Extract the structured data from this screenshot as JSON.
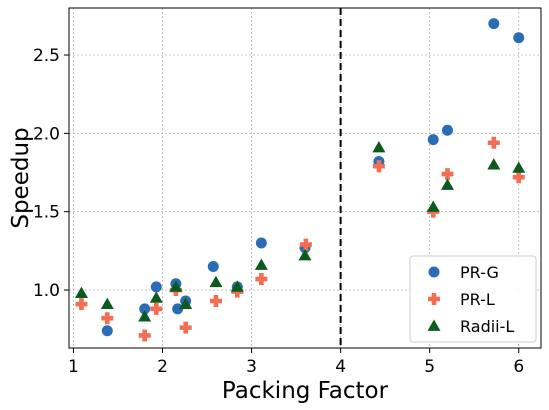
{
  "chart_data": {
    "type": "scatter",
    "title": "",
    "xlabel": "Packing Factor",
    "ylabel": "Speedup",
    "xlim": [
      0.95,
      6.25
    ],
    "ylim": [
      0.63,
      2.8
    ],
    "xticks": [
      1,
      2,
      3,
      4,
      5,
      6
    ],
    "yticks": [
      1.0,
      1.5,
      2.0,
      2.5
    ],
    "xtick_labels": [
      "1",
      "2",
      "3",
      "4",
      "5",
      "6"
    ],
    "ytick_labels": [
      "1.0",
      "1.5",
      "2.0",
      "2.5"
    ],
    "grid": true,
    "vertical_reference_line": 4.0,
    "legend_position": "lower-right",
    "series": [
      {
        "name": "PR-G",
        "marker": "circle",
        "color": "#2a6db5",
        "points": [
          [
            1.38,
            0.74
          ],
          [
            1.8,
            0.88
          ],
          [
            1.93,
            1.02
          ],
          [
            2.15,
            1.04
          ],
          [
            2.17,
            0.88
          ],
          [
            2.26,
            0.93
          ],
          [
            2.57,
            1.15
          ],
          [
            2.84,
            1.02
          ],
          [
            3.11,
            1.3
          ],
          [
            3.6,
            1.27
          ],
          [
            4.43,
            1.82
          ],
          [
            5.04,
            1.96
          ],
          [
            5.2,
            2.02
          ],
          [
            5.72,
            2.7
          ],
          [
            6.0,
            2.61
          ]
        ]
      },
      {
        "name": "PR-L",
        "marker": "plus",
        "color": "#f36e52",
        "points": [
          [
            1.09,
            0.91
          ],
          [
            1.38,
            0.82
          ],
          [
            1.8,
            0.71
          ],
          [
            1.93,
            0.88
          ],
          [
            2.15,
            1.0
          ],
          [
            2.26,
            0.76
          ],
          [
            2.6,
            0.93
          ],
          [
            2.84,
            0.99
          ],
          [
            3.11,
            1.07
          ],
          [
            3.61,
            1.29
          ],
          [
            4.43,
            1.79
          ],
          [
            5.04,
            1.5
          ],
          [
            5.2,
            1.74
          ],
          [
            5.72,
            1.94
          ],
          [
            6.0,
            1.72
          ]
        ]
      },
      {
        "name": "Radii-L",
        "marker": "triangle",
        "color": "#0b5a1f",
        "points": [
          [
            1.09,
            0.98
          ],
          [
            1.38,
            0.91
          ],
          [
            1.8,
            0.83
          ],
          [
            1.93,
            0.95
          ],
          [
            2.15,
            1.02
          ],
          [
            2.26,
            0.91
          ],
          [
            2.6,
            1.05
          ],
          [
            2.84,
            1.02
          ],
          [
            3.11,
            1.16
          ],
          [
            3.6,
            1.22
          ],
          [
            4.43,
            1.91
          ],
          [
            5.04,
            1.53
          ],
          [
            5.2,
            1.67
          ],
          [
            5.72,
            1.8
          ],
          [
            6.0,
            1.78
          ]
        ]
      }
    ]
  }
}
